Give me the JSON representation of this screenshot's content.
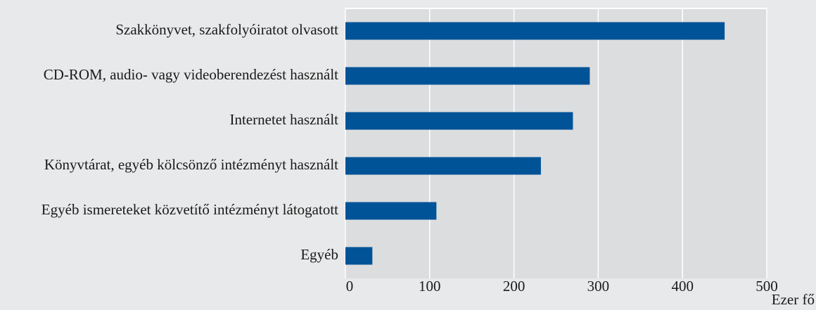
{
  "chart_data": {
    "type": "hbar",
    "categories": [
      "Szakkönyvet, szakfolyóiratot olvasott",
      "CD-ROM, audio- vagy videoberendezést használt",
      "Internetet használt",
      "Könyvtárat, egyéb kölcsönző intézményt használt",
      "Egyéb ismereteket közvetítő intézményt látogatott",
      "Egyéb"
    ],
    "values": [
      450,
      290,
      270,
      232,
      108,
      32
    ],
    "color": "#005397",
    "xlabel": "Ezer fő",
    "xlim": [
      0,
      500
    ],
    "xticks": [
      0,
      100,
      200,
      300,
      400,
      500
    ],
    "grid": true
  }
}
